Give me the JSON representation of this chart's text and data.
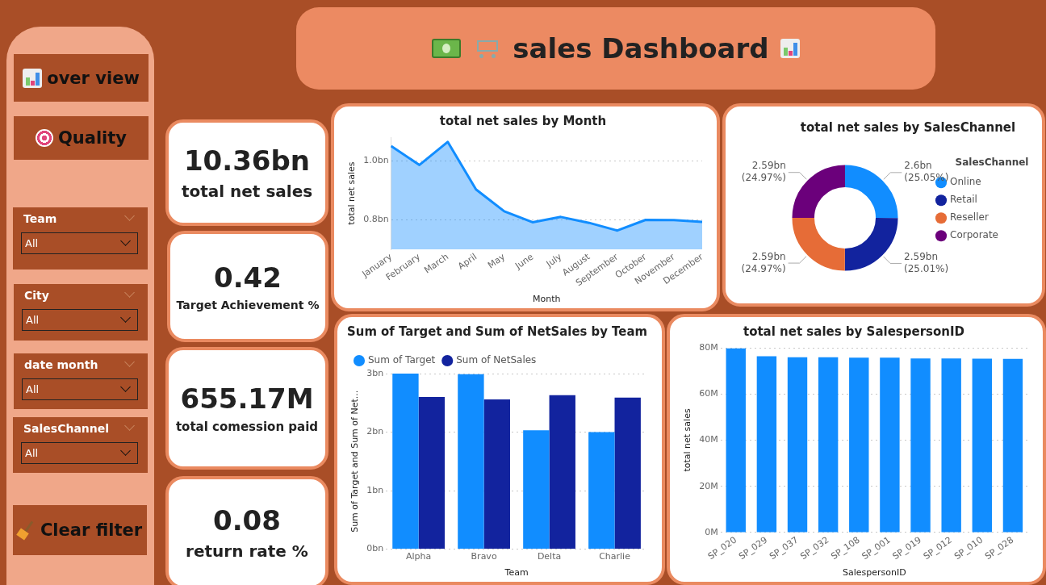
{
  "chart_data": [
    {
      "type": "other",
      "title": "sales Dashboard",
      "annotations": [
        "over view",
        "Quality",
        "Team",
        "All",
        "City",
        "All",
        "date month",
        "All",
        "SalesChannel",
        "All",
        "Clear filter",
        "10.36bn",
        "total net sales",
        "0.42",
        "Target Achievement %",
        "655.17M",
        "total comession paid",
        "0.08",
        "return rate %"
      ]
    },
    {
      "type": "area",
      "title": "total net sales by Month",
      "xlabel": "Month",
      "ylabel": "total net sales",
      "categories": [
        "January",
        "February",
        "March",
        "April",
        "May",
        "June",
        "July",
        "August",
        "September",
        "October",
        "November",
        "December"
      ],
      "values": [
        1.05,
        0.986,
        1.064,
        0.903,
        0.829,
        0.792,
        0.81,
        0.79,
        0.764,
        0.8,
        0.799,
        0.793
      ],
      "color": "#118dff",
      "ylim": [
        0.7,
        1.08
      ],
      "yticks": [
        {
          "value": 0.8,
          "label": "0.8bn"
        },
        {
          "value": 1.0,
          "label": "1.0bn"
        }
      ],
      "grid": "y"
    },
    {
      "type": "donut",
      "title": "total net sales by SalesChannel",
      "legend_title": "SalesChannel",
      "legend": "right",
      "categories": [
        "Online",
        "Retail",
        "Reseller",
        "Corporate"
      ],
      "values": [
        25.05,
        25.01,
        24.97,
        24.97
      ],
      "colors": [
        "#118dff",
        "#12239e",
        "#e66c37",
        "#6b007b"
      ],
      "value_labels": [
        "2.6bn (25.05%)",
        "2.59bn (25.01%)",
        "2.59bn (24.97%)",
        "2.59bn (24.97%)"
      ]
    },
    {
      "type": "bar",
      "title": "Sum of Target and Sum of NetSales by Team",
      "xlabel": "Team",
      "ylabel": "Sum of Target and Sum of Net...",
      "categories": [
        "Alpha",
        "Bravo",
        "Delta",
        "Charlie"
      ],
      "series": [
        {
          "name": "Sum of Target",
          "color": "#118dff",
          "values": [
            3.0,
            2.99,
            2.03,
            2.0
          ]
        },
        {
          "name": "Sum of NetSales",
          "color": "#12239e",
          "values": [
            2.6,
            2.56,
            2.63,
            2.59
          ]
        }
      ],
      "ylim": [
        0,
        3
      ],
      "yticks": [
        {
          "value": 0,
          "label": "0bn"
        },
        {
          "value": 1,
          "label": "1bn"
        },
        {
          "value": 2,
          "label": "2bn"
        },
        {
          "value": 3,
          "label": "3bn"
        }
      ],
      "grid": "y",
      "legend": "top left"
    },
    {
      "type": "bar",
      "title": "total net sales by SalespersonID",
      "xlabel": "SalespersonID",
      "ylabel": "total net sales",
      "categories": [
        "SP_020",
        "SP_029",
        "SP_037",
        "SP_032",
        "SP_108",
        "SP_001",
        "SP_019",
        "SP_012",
        "SP_010",
        "SP_028"
      ],
      "values": [
        79.7,
        76.3,
        75.9,
        75.9,
        75.7,
        75.7,
        75.4,
        75.4,
        75.3,
        75.2
      ],
      "color": "#118dff",
      "ylim": [
        0,
        80
      ],
      "yticks": [
        {
          "value": 0,
          "label": "0M"
        },
        {
          "value": 20,
          "label": "20M"
        },
        {
          "value": 40,
          "label": "40M"
        },
        {
          "value": 60,
          "label": "60M"
        },
        {
          "value": 80,
          "label": "80M"
        }
      ],
      "grid": "y"
    }
  ]
}
